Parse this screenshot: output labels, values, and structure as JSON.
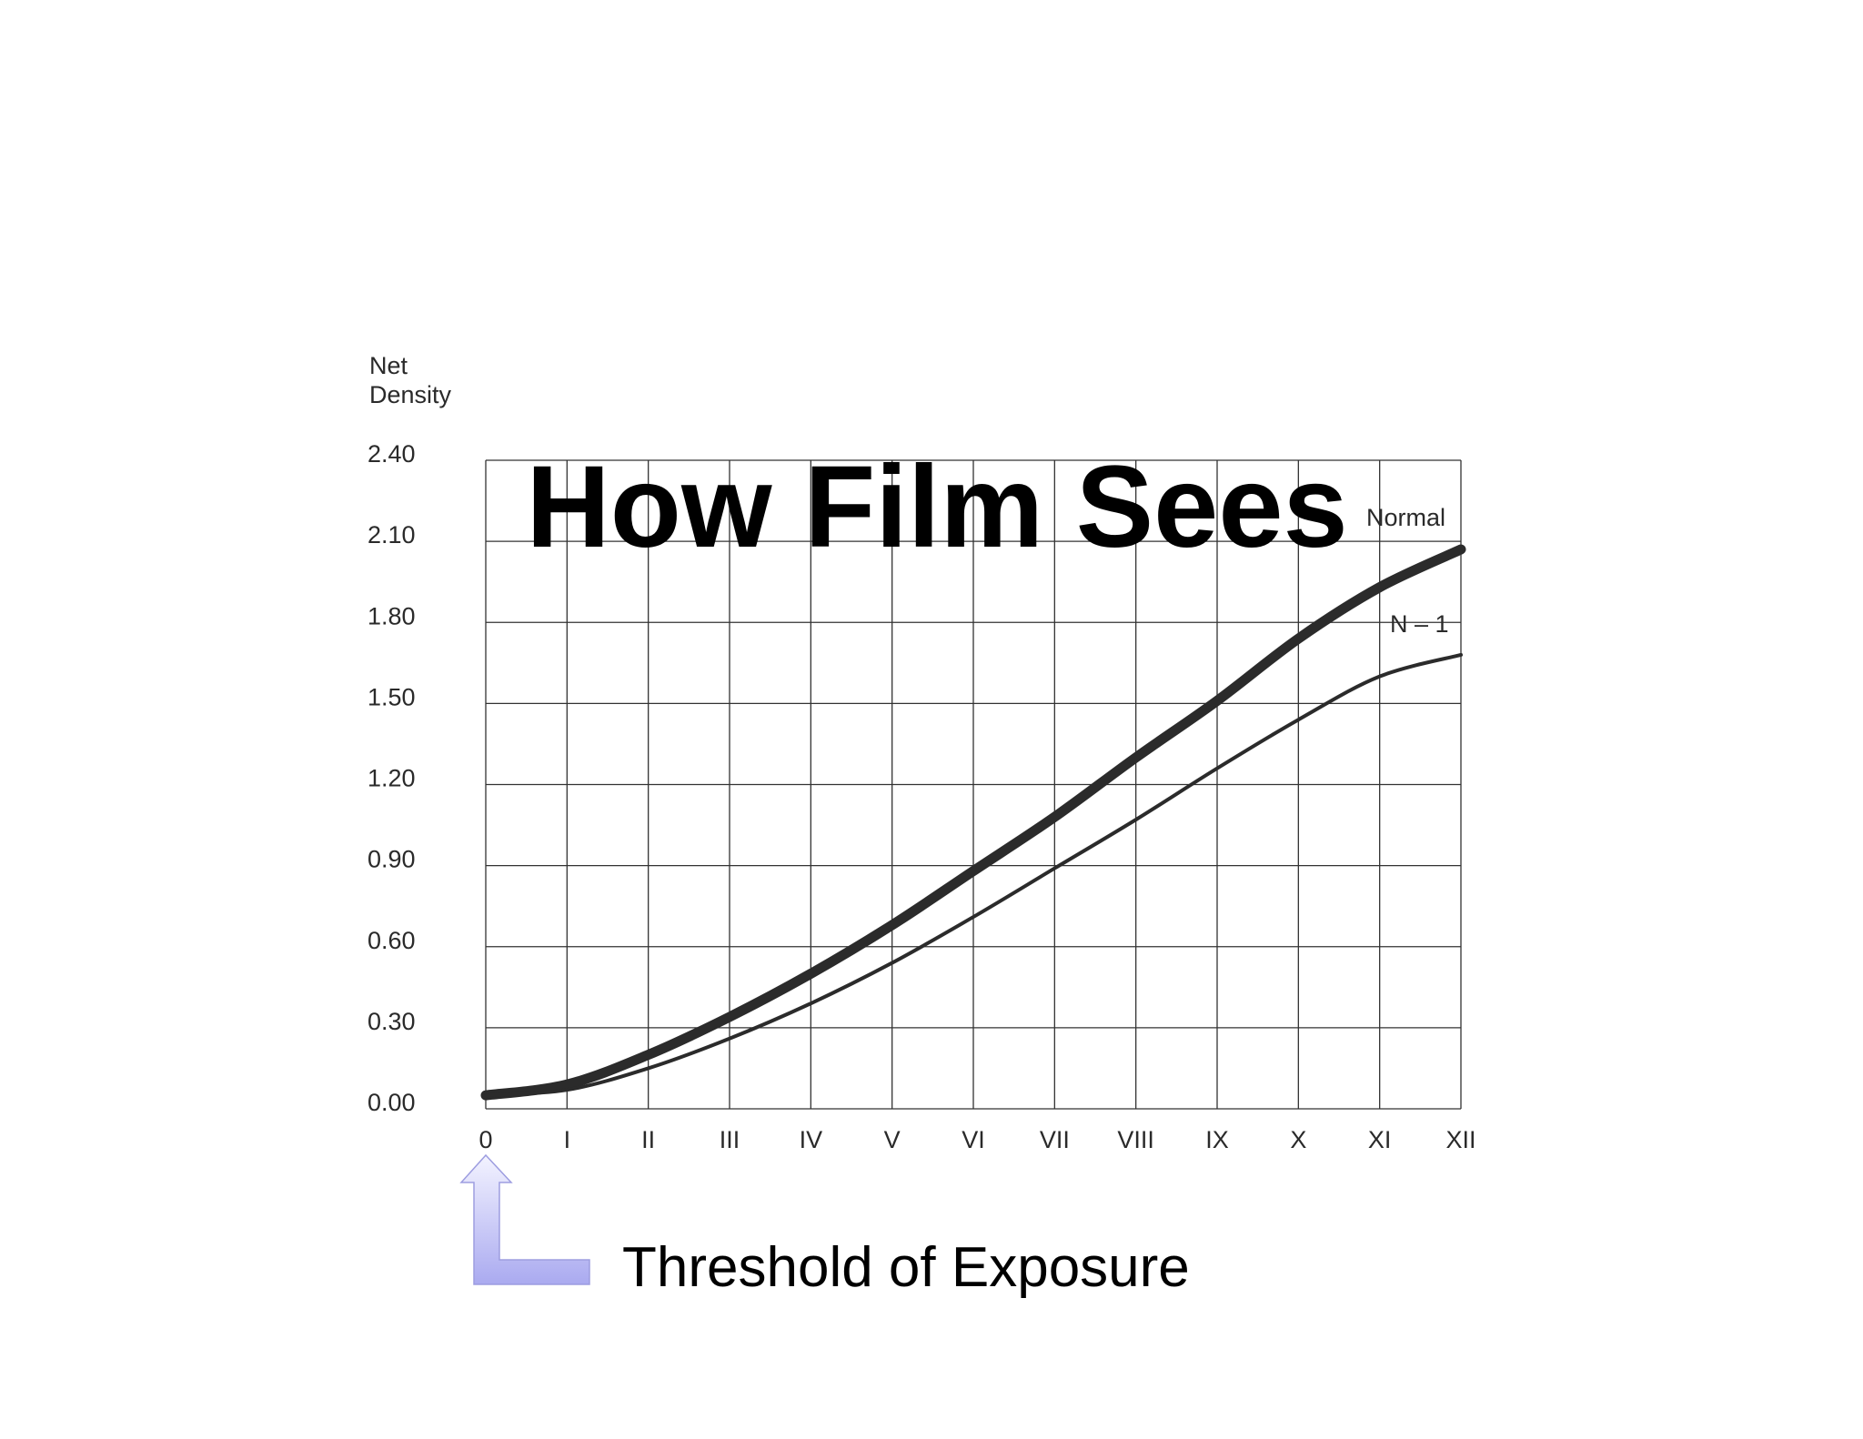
{
  "slide": {
    "title": "How Film Sees",
    "caption": "Threshold of Exposure",
    "arrow_icon": "up-arrow-icon",
    "arrow_color": "#b3b3ef"
  },
  "chart_data": {
    "type": "line",
    "title": "How Film Sees",
    "ylabel_lines": [
      "Net",
      "Density"
    ],
    "xlabel": "",
    "categories": [
      "0",
      "I",
      "II",
      "III",
      "IV",
      "V",
      "VI",
      "VII",
      "VIII",
      "IX",
      "X",
      "XI",
      "XII"
    ],
    "yticks": [
      "0.00",
      "0.30",
      "0.60",
      "0.90",
      "1.20",
      "1.50",
      "1.80",
      "2.10",
      "2.40"
    ],
    "ylim": [
      0,
      2.4
    ],
    "grid": true,
    "series": [
      {
        "name": "Normal",
        "values": [
          0.05,
          0.09,
          0.2,
          0.34,
          0.5,
          0.68,
          0.88,
          1.08,
          1.3,
          1.51,
          1.74,
          1.93,
          2.07
        ],
        "color": "#2b2b2b",
        "weight": "heavy"
      },
      {
        "name": "N – 1",
        "values": [
          0.05,
          0.07,
          0.15,
          0.26,
          0.39,
          0.54,
          0.71,
          0.89,
          1.07,
          1.26,
          1.44,
          1.6,
          1.68
        ],
        "color": "#2b2b2b",
        "weight": "light"
      }
    ]
  }
}
